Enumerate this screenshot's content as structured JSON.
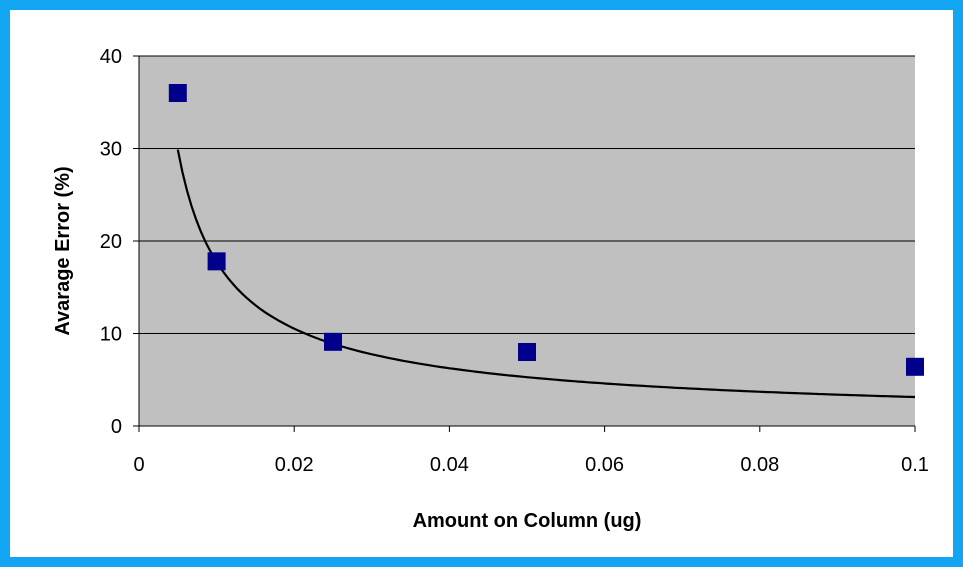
{
  "chart_data": {
    "type": "scatter",
    "title": "",
    "xlabel": "Amount on Column (ug)",
    "ylabel": "Avarage Error (%)",
    "xlim": [
      0,
      0.1
    ],
    "ylim": [
      0,
      40
    ],
    "x_ticks": [
      "0",
      "0.02",
      "0.04",
      "0.06",
      "0.08",
      "0.1"
    ],
    "y_ticks": [
      "0",
      "10",
      "20",
      "30",
      "40"
    ],
    "x_tick_values": [
      0,
      0.02,
      0.04,
      0.06,
      0.08,
      0.1
    ],
    "y_tick_values": [
      0,
      10,
      20,
      30,
      40
    ],
    "grid": "horizontal",
    "legend": "none",
    "series": [
      {
        "points": [
          {
            "x": 0.005,
            "y": 36
          },
          {
            "x": 0.01,
            "y": 17.8
          },
          {
            "x": 0.025,
            "y": 9.1
          },
          {
            "x": 0.05,
            "y": 8
          },
          {
            "x": 0.1,
            "y": 6.4
          }
        ],
        "marker": "square",
        "color": "#00008b"
      }
    ],
    "trendline": {
      "type": "power",
      "coefficient": 0.553,
      "exponent": -0.753,
      "x_range": [
        0.005,
        0.1
      ],
      "color": "#000000"
    },
    "colors": {
      "plot_background": "#c0c0c0",
      "frame_border": "#11a5f2",
      "gridline": "#000000"
    }
  }
}
